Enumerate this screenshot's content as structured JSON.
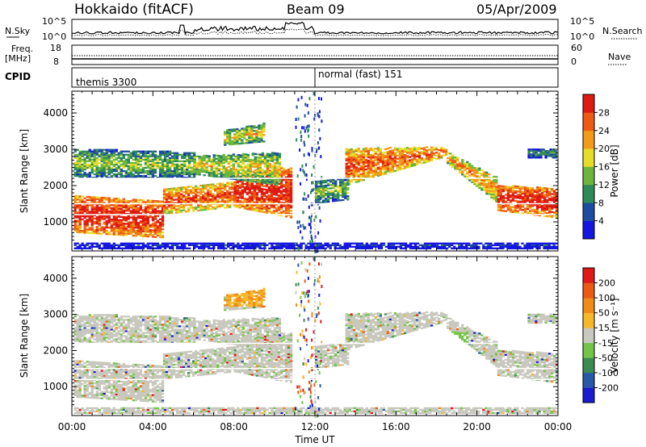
{
  "header": {
    "station": "Hokkaido (fitACF)",
    "beam": "Beam 09",
    "date": "05/Apr/2009"
  },
  "top_panels": {
    "nsky_label": "N.Sky",
    "nsky_ticks": [
      "10^5",
      "10^0"
    ],
    "nsearch_label": "N.Search",
    "nsearch_ticks": [
      "10^5",
      "10^0"
    ],
    "freq_label_line1": "Freq.",
    "freq_label_line2": "[MHz]",
    "freq_ticks": [
      "18",
      "8"
    ],
    "nave_label": "Nave",
    "nave_ticks": [
      "60",
      "0"
    ],
    "cpid_label": "CPID",
    "cpid_program_1": "themis 3300",
    "cpid_program_2": "normal (fast) 151"
  },
  "colors": {
    "power_scale": [
      "#1515e0",
      "#1e4ca0",
      "#2e8a58",
      "#6cb63e",
      "#e6dc2a",
      "#f29a1a",
      "#ee5a14",
      "#dd1b12"
    ],
    "velocity_scale": [
      "#1a1acf",
      "#2858a8",
      "#3c8c52",
      "#74c44a",
      "#c8c8be",
      "#f5b82a",
      "#f08a18",
      "#ea5a12",
      "#e01818"
    ]
  },
  "chart_data": [
    {
      "type": "heatmap",
      "panel": "power",
      "ylabel": "Slant Range [km]",
      "yticks": [
        "1000",
        "2000",
        "3000",
        "4000"
      ],
      "ylim": [
        200,
        4600
      ],
      "xlim_hours": [
        0,
        24
      ],
      "colorbar_label": "Power [dB]",
      "colorbar_ticks": [
        "4",
        "8",
        "12",
        "16",
        "20",
        "24",
        "28"
      ],
      "colorbar_range": [
        0,
        32
      ]
    },
    {
      "type": "heatmap",
      "panel": "velocity",
      "ylabel": "Slant Range [km]",
      "yticks": [
        "1000",
        "2000",
        "3000",
        "4000"
      ],
      "ylim": [
        200,
        4600
      ],
      "xlim_hours": [
        0,
        24
      ],
      "xlabel": "Time UT",
      "xticks": [
        "00:00",
        "04:00",
        "08:00",
        "12:00",
        "16:00",
        "20:00",
        "00:00"
      ],
      "colorbar_label": "Velocity [m s⁻¹]",
      "colorbar_ticks": [
        "200",
        "100",
        "50",
        "15",
        "-15",
        "-50",
        "-100",
        "-200"
      ]
    }
  ]
}
